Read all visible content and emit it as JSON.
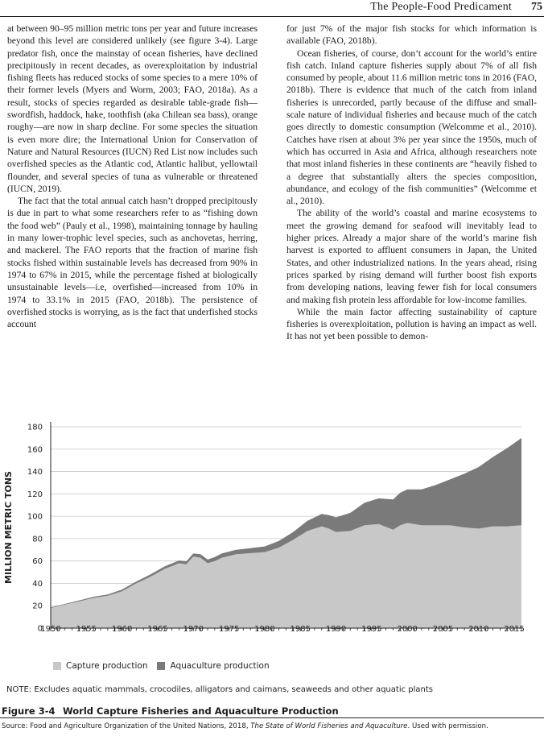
{
  "header": {
    "running_title": "The People-Food Predicament",
    "page_number": "75"
  },
  "left_column": [
    "at between 90–95 million metric tons per year and future increases beyond this level are considered unlikely (see figure 3-4). Large predator fish, once the mainstay of ocean fisheries, have declined precipitously in recent decades, as overexploitation by industrial fishing fleets has reduced stocks of some species to a mere 10% of their former levels (Myers and Worm, 2003; FAO, 2018a). As a result, stocks of species regarded as desirable table-grade fish—swordfish, haddock, hake, toothfish (aka Chilean sea bass), orange roughy—are now in sharp decline. For some species the situation is even more dire; the International Union for Conservation of Nature and Natural Resources (IUCN) Red List now includes such overfished species as the Atlantic cod, Atlantic halibut, yellowtail flounder, and several species of tuna as vulnerable or threatened (IUCN, 2019).",
    "The fact that the total annual catch hasn’t dropped precipitously is due in part to what some researchers refer to as “fishing down the food web” (Pauly et al., 1998), maintaining tonnage by hauling in many lower-trophic level species, such as anchovetas, herring, and mackerel. The FAO reports that the fraction of marine fish stocks fished within sustainable levels has decreased from 90% in 1974 to 67% in 2015, while the percentage fished at biologically unsustainable levels—i.e, overfished—increased from 10% in 1974 to 33.1% in 2015 (FAO, 2018b). The persistence of overfished stocks is worrying, as is the fact that underfished stocks account"
  ],
  "right_column": [
    "for just 7% of the major fish stocks for which information is available (FAO, 2018b).",
    "Ocean fisheries, of course, don’t account for the world’s entire fish catch. Inland capture fisheries supply about 7% of all fish consumed by people, about 11.6 million metric tons in 2016 (FAO, 2018b). There is evidence that much of the catch from inland fisheries is unrecorded, partly because of the diffuse and small-scale nature of individual fisheries and because much of the catch goes directly to domestic consumption (Welcomme et al., 2010). Catches have risen at about 3% per year since the 1950s, much of which has occurred in Asia and Africa, although researchers note that most inland fisheries in these continents are “heavily fished to a degree that substantially alters the species composition, abundance, and ecology of the fish communities” (Welcomme et al., 2010).",
    "The ability of the world’s coastal and marine ecosystems to meet the growing demand for seafood will inevitably lead to higher prices. Already a major share of the world’s marine fish harvest is exported to affluent consumers in Japan, the United States, and other industrialized nations. In the years ahead, rising prices sparked by rising demand will further boost fish exports from developing nations, leaving fewer fish for local consumers and making fish protein less affordable for low-income families.",
    "While the main factor affecting sustainability of capture fisheries is overexploitation, pollution is having an impact as well. It has not yet been possible to demon-"
  ],
  "figure": {
    "label": "Figure 3-4",
    "title": "World Capture Fisheries and Aquaculture Production",
    "note": "NOTE: Excludes aquatic mammals, crocodiles, alligators and caimans, seaweeds and other aquatic plants",
    "source_prefix": "Source: Food and Agriculture Organization of the United Nations, 2018, ",
    "source_italic": "The State of World Fisheries and Aquaculture",
    "source_suffix": ". Used with permission."
  },
  "colors": {
    "capture": "#c8c8c8",
    "aquaculture": "#7a7a7a"
  },
  "chart_data": {
    "type": "area",
    "stacked": true,
    "title": "",
    "xlabel": "",
    "ylabel": "MILLION METRIC TONS",
    "xlim": [
      1950,
      2016
    ],
    "ylim": [
      0,
      180
    ],
    "xticks": [
      1950,
      1955,
      1960,
      1965,
      1970,
      1975,
      1980,
      1985,
      1990,
      1995,
      2000,
      2005,
      2010,
      2015
    ],
    "yticks": [
      0,
      20,
      40,
      60,
      80,
      100,
      120,
      140,
      160,
      180
    ],
    "grid": "horizontal",
    "legend_position": "bottom-left",
    "x": [
      1950,
      1952,
      1954,
      1956,
      1958,
      1960,
      1962,
      1964,
      1966,
      1968,
      1969,
      1970,
      1971,
      1972,
      1973,
      1974,
      1976,
      1978,
      1980,
      1982,
      1984,
      1986,
      1988,
      1989,
      1990,
      1992,
      1994,
      1996,
      1998,
      1999,
      2000,
      2002,
      2004,
      2006,
      2008,
      2010,
      2012,
      2014,
      2016
    ],
    "series": [
      {
        "name": "Capture production",
        "values": [
          18,
          21,
          24,
          27,
          29,
          33,
          40,
          46,
          53,
          58,
          57,
          64,
          63,
          58,
          60,
          63,
          66,
          67,
          68,
          72,
          79,
          87,
          91,
          89,
          86,
          87,
          92,
          93,
          88,
          92,
          94,
          92,
          92,
          92,
          90,
          89,
          91,
          91,
          92
        ]
      },
      {
        "name": "Aquaculture production",
        "values": [
          0.5,
          0.6,
          0.8,
          1,
          1.1,
          1.5,
          1.7,
          2,
          2.3,
          2.5,
          2.6,
          2.8,
          3,
          3.3,
          3.5,
          3.8,
          4,
          4.5,
          5,
          6,
          7,
          9,
          11,
          12,
          13,
          16,
          20,
          23,
          27,
          29,
          30,
          32,
          36,
          41,
          48,
          55,
          62,
          70,
          78
        ]
      }
    ]
  }
}
